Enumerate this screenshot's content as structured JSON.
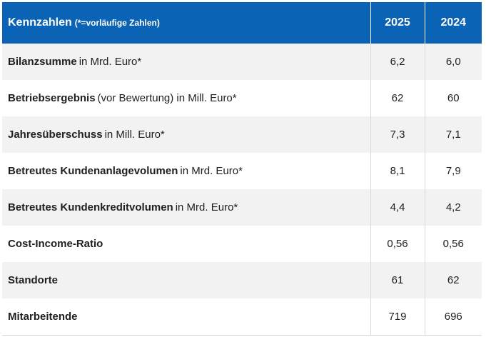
{
  "table": {
    "header": {
      "title": "Kennzahlen",
      "subtitle": "(*=vorläufige Zahlen)",
      "year1": "2025",
      "year2": "2024"
    },
    "rows": [
      {
        "name": "Bilanzsumme",
        "unit": "in Mrd. Euro*",
        "v2025": "6,2",
        "v2024": "6,0"
      },
      {
        "name": "Betriebsergebnis",
        "unit": "(vor Bewertung) in Mill. Euro*",
        "v2025": "62",
        "v2024": "60"
      },
      {
        "name": "Jahresüberschuss",
        "unit": "in Mill. Euro*",
        "v2025": "7,3",
        "v2024": "7,1"
      },
      {
        "name": "Betreutes Kundenanlagevolumen",
        "unit": "in Mrd. Euro*",
        "v2025": "8,1",
        "v2024": "7,9"
      },
      {
        "name": "Betreutes Kundenkreditvolumen",
        "unit": "in Mrd. Euro*",
        "v2025": "4,4",
        "v2024": "4,2"
      },
      {
        "name": "Cost-Income-Ratio",
        "unit": "",
        "v2025": "0,56",
        "v2024": "0,56"
      },
      {
        "name": "Standorte",
        "unit": "",
        "v2025": "61",
        "v2024": "62"
      },
      {
        "name": "Mitarbeitende",
        "unit": "",
        "v2025": "719",
        "v2024": "696"
      }
    ]
  },
  "colors": {
    "header_bg": "#0a63b4",
    "header_text": "#ffffff",
    "row_alt_bg": "#f2f2f2"
  }
}
